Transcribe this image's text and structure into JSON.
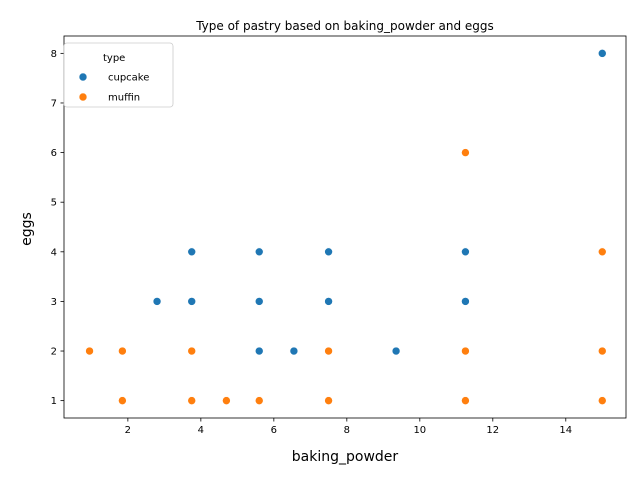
{
  "chart_data": {
    "type": "scatter",
    "title": "Type of pastry based on baking_powder and eggs",
    "xlabel": "baking_powder",
    "ylabel": "eggs",
    "xlim": [
      0.25,
      15.65
    ],
    "ylim": [
      0.65,
      8.35
    ],
    "xticks": [
      2,
      4,
      6,
      8,
      10,
      12,
      14
    ],
    "yticks": [
      1,
      2,
      3,
      4,
      5,
      6,
      7,
      8
    ],
    "grid": false,
    "legend": {
      "title": "type",
      "placement": "top-left"
    },
    "series": [
      {
        "name": "cupcake",
        "color": "#1f77b4",
        "points": [
          [
            2.8,
            3
          ],
          [
            3.75,
            4
          ],
          [
            3.75,
            3
          ],
          [
            5.6,
            4
          ],
          [
            5.6,
            3
          ],
          [
            5.6,
            2
          ],
          [
            6.55,
            2
          ],
          [
            7.5,
            4
          ],
          [
            7.5,
            3
          ],
          [
            9.35,
            2
          ],
          [
            11.25,
            4
          ],
          [
            11.25,
            3
          ],
          [
            15,
            8
          ]
        ]
      },
      {
        "name": "muffin",
        "color": "#ff7f0e",
        "points": [
          [
            0.95,
            2
          ],
          [
            1.85,
            2
          ],
          [
            1.85,
            1
          ],
          [
            3.75,
            2
          ],
          [
            3.75,
            1
          ],
          [
            4.7,
            1
          ],
          [
            5.6,
            1
          ],
          [
            7.5,
            2
          ],
          [
            7.5,
            1
          ],
          [
            11.25,
            6
          ],
          [
            11.25,
            2
          ],
          [
            11.25,
            1
          ],
          [
            15,
            4
          ],
          [
            15,
            2
          ],
          [
            15,
            1
          ]
        ]
      }
    ]
  }
}
